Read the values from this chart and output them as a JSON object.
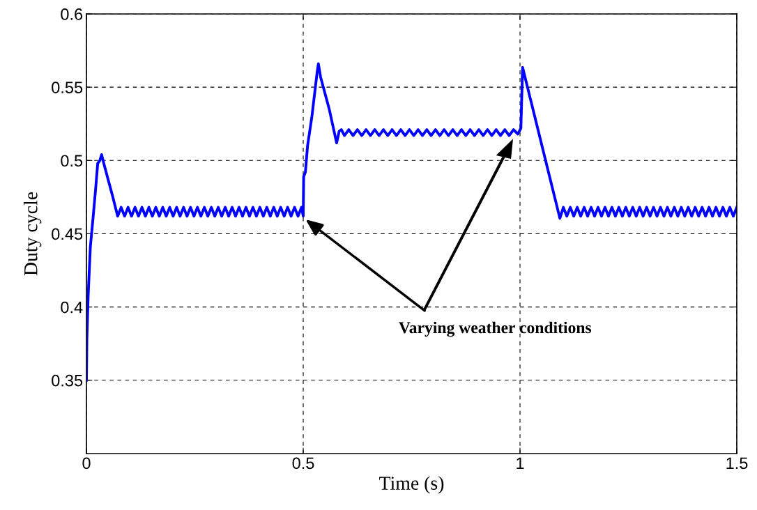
{
  "chart_data": {
    "type": "line",
    "xlabel": "Time (s)",
    "ylabel": "Duty cycle",
    "xlim": [
      0,
      1.5
    ],
    "xticks": [
      0,
      0.5,
      1,
      1.5
    ],
    "ylim": [
      0.3,
      0.6
    ],
    "yticks": [
      0.35,
      0.4,
      0.45,
      0.5,
      0.55,
      0.6
    ],
    "grid": true,
    "legend": false,
    "line_style": "solid",
    "marker": "none",
    "annotations": [
      {
        "text": "Varying weather conditions",
        "x": 0.5,
        "y": 0.461
      }
    ],
    "series": [
      {
        "color": "#0000ff",
        "x": [
          0,
          0.001,
          0.004,
          0.009,
          0.015,
          0.021,
          0.026,
          0.031,
          0.035,
          0.04,
          0.05,
          0.06,
          0.072,
          0.08,
          0.088,
          0.096,
          0.104,
          0.112,
          0.12,
          0.128,
          0.136,
          0.144,
          0.152,
          0.16,
          0.168,
          0.176,
          0.184,
          0.192,
          0.2,
          0.208,
          0.216,
          0.224,
          0.232,
          0.24,
          0.248,
          0.256,
          0.264,
          0.272,
          0.28,
          0.288,
          0.296,
          0.304,
          0.312,
          0.32,
          0.328,
          0.336,
          0.344,
          0.352,
          0.36,
          0.368,
          0.376,
          0.384,
          0.392,
          0.4,
          0.408,
          0.416,
          0.424,
          0.432,
          0.44,
          0.448,
          0.456,
          0.464,
          0.472,
          0.48,
          0.488,
          0.496,
          0.5,
          0.501,
          0.505,
          0.51,
          0.52,
          0.528,
          0.532,
          0.535,
          0.54,
          0.56,
          0.577,
          0.583,
          0.588,
          0.595,
          0.605,
          0.615,
          0.625,
          0.635,
          0.645,
          0.655,
          0.665,
          0.675,
          0.685,
          0.695,
          0.705,
          0.715,
          0.725,
          0.735,
          0.745,
          0.755,
          0.765,
          0.775,
          0.785,
          0.795,
          0.805,
          0.815,
          0.825,
          0.835,
          0.845,
          0.855,
          0.865,
          0.875,
          0.885,
          0.895,
          0.905,
          0.915,
          0.925,
          0.935,
          0.945,
          0.955,
          0.965,
          0.975,
          0.985,
          0.995,
          1.002,
          1.006,
          1.092,
          1.1,
          1.108,
          1.116,
          1.124,
          1.132,
          1.14,
          1.148,
          1.156,
          1.164,
          1.172,
          1.18,
          1.188,
          1.196,
          1.204,
          1.212,
          1.22,
          1.228,
          1.236,
          1.244,
          1.252,
          1.26,
          1.268,
          1.276,
          1.284,
          1.292,
          1.3,
          1.308,
          1.316,
          1.324,
          1.332,
          1.34,
          1.348,
          1.356,
          1.364,
          1.372,
          1.38,
          1.388,
          1.396,
          1.404,
          1.412,
          1.42,
          1.428,
          1.436,
          1.444,
          1.452,
          1.46,
          1.468,
          1.476,
          1.484,
          1.492,
          1.5
        ],
        "values": [
          0.35,
          0.378,
          0.408,
          0.441,
          0.46,
          0.48,
          0.498,
          0.5,
          0.504,
          0.498,
          0.487,
          0.476,
          0.462,
          0.468,
          0.462,
          0.468,
          0.462,
          0.468,
          0.462,
          0.468,
          0.462,
          0.468,
          0.462,
          0.468,
          0.462,
          0.468,
          0.462,
          0.468,
          0.462,
          0.468,
          0.462,
          0.468,
          0.462,
          0.468,
          0.462,
          0.468,
          0.462,
          0.468,
          0.462,
          0.468,
          0.462,
          0.468,
          0.462,
          0.468,
          0.462,
          0.468,
          0.462,
          0.468,
          0.462,
          0.468,
          0.462,
          0.468,
          0.462,
          0.468,
          0.462,
          0.468,
          0.462,
          0.468,
          0.462,
          0.468,
          0.462,
          0.468,
          0.462,
          0.468,
          0.462,
          0.468,
          0.462,
          0.489,
          0.492,
          0.51,
          0.53,
          0.55,
          0.56,
          0.566,
          0.557,
          0.535,
          0.512,
          0.52,
          0.521,
          0.517,
          0.521,
          0.517,
          0.521,
          0.517,
          0.521,
          0.517,
          0.521,
          0.517,
          0.521,
          0.517,
          0.521,
          0.517,
          0.521,
          0.517,
          0.521,
          0.517,
          0.521,
          0.517,
          0.521,
          0.517,
          0.521,
          0.517,
          0.521,
          0.517,
          0.521,
          0.517,
          0.521,
          0.517,
          0.521,
          0.517,
          0.521,
          0.517,
          0.521,
          0.517,
          0.521,
          0.517,
          0.521,
          0.517,
          0.521,
          0.518,
          0.522,
          0.5635,
          0.4605,
          0.468,
          0.462,
          0.468,
          0.462,
          0.468,
          0.462,
          0.468,
          0.462,
          0.468,
          0.462,
          0.468,
          0.462,
          0.468,
          0.462,
          0.468,
          0.462,
          0.468,
          0.462,
          0.468,
          0.462,
          0.468,
          0.462,
          0.468,
          0.462,
          0.468,
          0.462,
          0.468,
          0.462,
          0.468,
          0.462,
          0.468,
          0.462,
          0.468,
          0.462,
          0.468,
          0.462,
          0.468,
          0.462,
          0.468,
          0.462,
          0.468,
          0.462,
          0.468,
          0.462,
          0.468,
          0.462,
          0.468,
          0.462,
          0.468,
          0.462,
          0.468
        ]
      }
    ]
  }
}
